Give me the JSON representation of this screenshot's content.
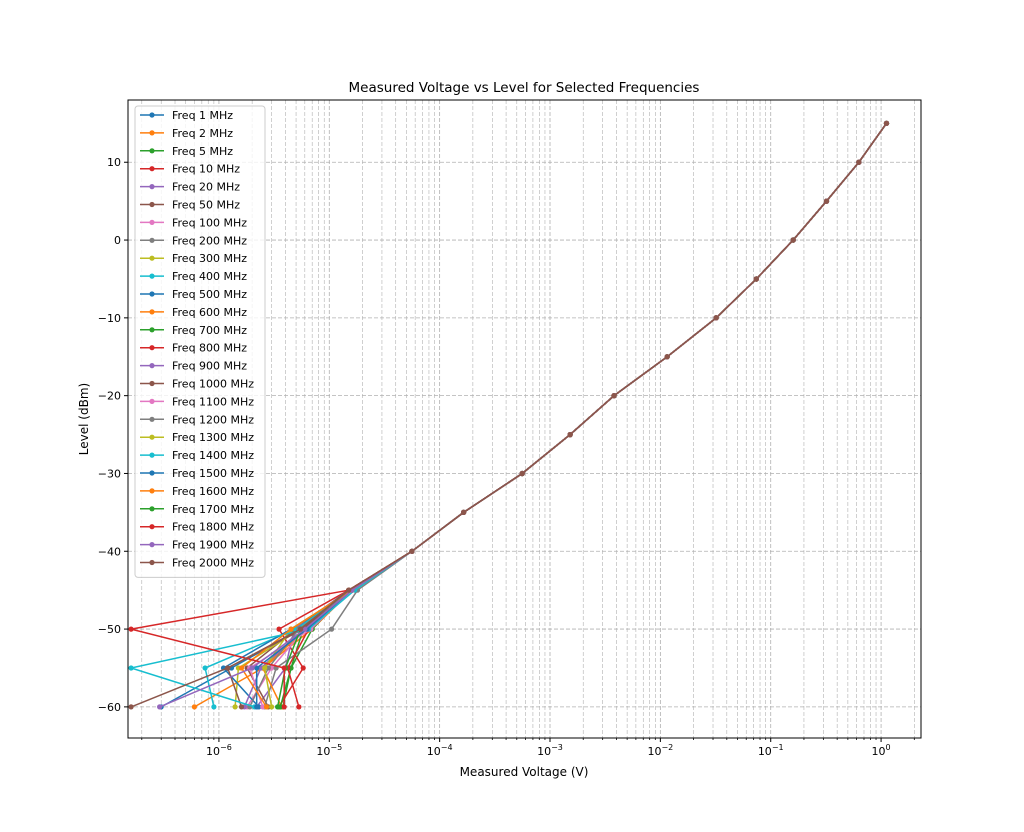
{
  "chart_data": {
    "type": "line",
    "title": "Measured Voltage vs Level for Selected Frequencies",
    "xlabel": "Measured Voltage (V)",
    "ylabel": "Level (dBm)",
    "xscale": "log",
    "xlim": [
      1.5e-07,
      2.3
    ],
    "ylim": [
      -64,
      18
    ],
    "grid": true,
    "legend_position": "upper left",
    "yticks": [
      10,
      0,
      -10,
      -20,
      -30,
      -40,
      -50,
      -60
    ],
    "ytick_labels": [
      "10",
      "0",
      "−10",
      "−20",
      "−30",
      "−40",
      "−50",
      "−60"
    ],
    "xticks": [
      1e-06,
      1e-05,
      0.0001,
      0.001,
      0.01,
      0.1,
      1
    ],
    "xtick_labels": [
      {
        "base": "10",
        "exp": "−6"
      },
      {
        "base": "10",
        "exp": "−5"
      },
      {
        "base": "10",
        "exp": "−4"
      },
      {
        "base": "10",
        "exp": "−3"
      },
      {
        "base": "10",
        "exp": "−2"
      },
      {
        "base": "10",
        "exp": "−1"
      },
      {
        "base": "10",
        "exp": "0"
      }
    ],
    "levels": [
      15,
      10,
      5,
      0,
      -5,
      -10,
      -15,
      -20,
      -25,
      -30,
      -35,
      -40,
      -45,
      -50,
      -55,
      -60
    ],
    "common_high": [
      1.12,
      0.63,
      0.32,
      0.16,
      0.074,
      0.032,
      0.0115,
      0.0038,
      0.00152,
      0.00056,
      0.000165,
      5.6e-05
    ],
    "series": [
      {
        "name": "Freq 1 MHz",
        "color": "#1f77b4",
        "tail": [
          1.6e-05,
          5.5e-06,
          1.3e-06,
          3e-07
        ]
      },
      {
        "name": "Freq 2 MHz",
        "color": "#ff7f0e",
        "tail": [
          1.6e-05,
          7e-06,
          2.5e-06,
          6e-07
        ]
      },
      {
        "name": "Freq 5 MHz",
        "color": "#2ca02c",
        "tail": [
          1.5e-05,
          7e-06,
          4.5e-06,
          3.8e-06
        ]
      },
      {
        "name": "Freq 10 MHz",
        "color": "#d62728",
        "tail": [
          1.5e-05,
          3.5e-06,
          5.8e-06,
          3.5e-06
        ]
      },
      {
        "name": "Freq 20 MHz",
        "color": "#9467bd",
        "tail": [
          1.5e-05,
          4.8e-06,
          4e-06,
          2.2e-06
        ]
      },
      {
        "name": "Freq 50 MHz",
        "color": "#8c564b",
        "tail": [
          1.5e-05,
          5e-06,
          1.8e-06,
          2.8e-06
        ]
      },
      {
        "name": "Freq 100 MHz",
        "color": "#e377c2",
        "tail": [
          1.6e-05,
          6e-06,
          3e-06,
          1.8e-06
        ]
      },
      {
        "name": "Freq 200 MHz",
        "color": "#7f7f7f",
        "tail": [
          1.8e-05,
          1.05e-05,
          3.3e-06,
          2.6e-06
        ]
      },
      {
        "name": "Freq 300 MHz",
        "color": "#bcbd22",
        "tail": [
          1.6e-05,
          5.5e-06,
          1.5e-06,
          1.4e-06
        ]
      },
      {
        "name": "Freq 400 MHz",
        "color": "#17becf",
        "tail": [
          1.6e-05,
          5e-06,
          7.5e-07,
          9e-07
        ]
      },
      {
        "name": "Freq 500 MHz",
        "color": "#1f77b4",
        "tail": [
          1.6e-05,
          4.5e-06,
          1.1e-06,
          2.3e-06
        ]
      },
      {
        "name": "Freq 600 MHz",
        "color": "#ff7f0e",
        "tail": [
          1.6e-05,
          6.2e-06,
          2.5e-06,
          3.7e-06
        ]
      },
      {
        "name": "Freq 700 MHz",
        "color": "#2ca02c",
        "tail": [
          1.5e-05,
          5.8e-06,
          4.5e-06,
          3.6e-06
        ]
      },
      {
        "name": "Freq 800 MHz",
        "color": "#d62728",
        "tail": [
          1.5e-05,
          6.5e-06,
          4.2e-06,
          5.3e-06
        ]
      },
      {
        "name": "Freq 900 MHz",
        "color": "#9467bd",
        "tail": [
          1.6e-05,
          6e-06,
          2.4e-06,
          1.7e-06
        ]
      },
      {
        "name": "Freq 1000 MHz",
        "color": "#8c564b",
        "tail": [
          1.5e-05,
          5.8e-06,
          1.2e-06,
          1.6e-06
        ]
      },
      {
        "name": "Freq 1100 MHz",
        "color": "#e377c2",
        "tail": [
          1.6e-05,
          6.8e-06,
          1.9e-06,
          2.5e-06
        ]
      },
      {
        "name": "Freq 1200 MHz",
        "color": "#7f7f7f",
        "tail": [
          1.6e-05,
          5.3e-06,
          2.8e-06,
          1.9e-06
        ]
      },
      {
        "name": "Freq 1300 MHz",
        "color": "#bcbd22",
        "tail": [
          1.6e-05,
          4.5e-06,
          2.6e-06,
          3e-06
        ]
      },
      {
        "name": "Freq 1400 MHz",
        "color": "#17becf",
        "tail": [
          1.7e-05,
          6.5e-06,
          1.6e-07,
          2.1e-06
        ]
      },
      {
        "name": "Freq 1500 MHz",
        "color": "#1f77b4",
        "tail": [
          1.6e-05,
          6.3e-06,
          2.2e-06,
          2.2e-06
        ]
      },
      {
        "name": "Freq 1600 MHz",
        "color": "#ff7f0e",
        "tail": [
          1.6e-05,
          4.5e-06,
          1.6e-06,
          2.7e-06
        ]
      },
      {
        "name": "Freq 1700 MHz",
        "color": "#2ca02c",
        "tail": [
          1.5e-05,
          5.5e-06,
          4e-06,
          3.4e-06
        ]
      },
      {
        "name": "Freq 1800 MHz",
        "color": "#d62728",
        "tail": [
          1.5e-05,
          1.6e-07,
          3.9e-06,
          3.9e-06
        ]
      },
      {
        "name": "Freq 1900 MHz",
        "color": "#9467bd",
        "tail": [
          1.6e-05,
          6e-06,
          2e-06,
          2.9e-07
        ]
      },
      {
        "name": "Freq 2000 MHz",
        "color": "#8c564b",
        "tail": [
          1.5e-05,
          5.5e-06,
          1.2e-06,
          1.6e-07
        ]
      }
    ]
  }
}
